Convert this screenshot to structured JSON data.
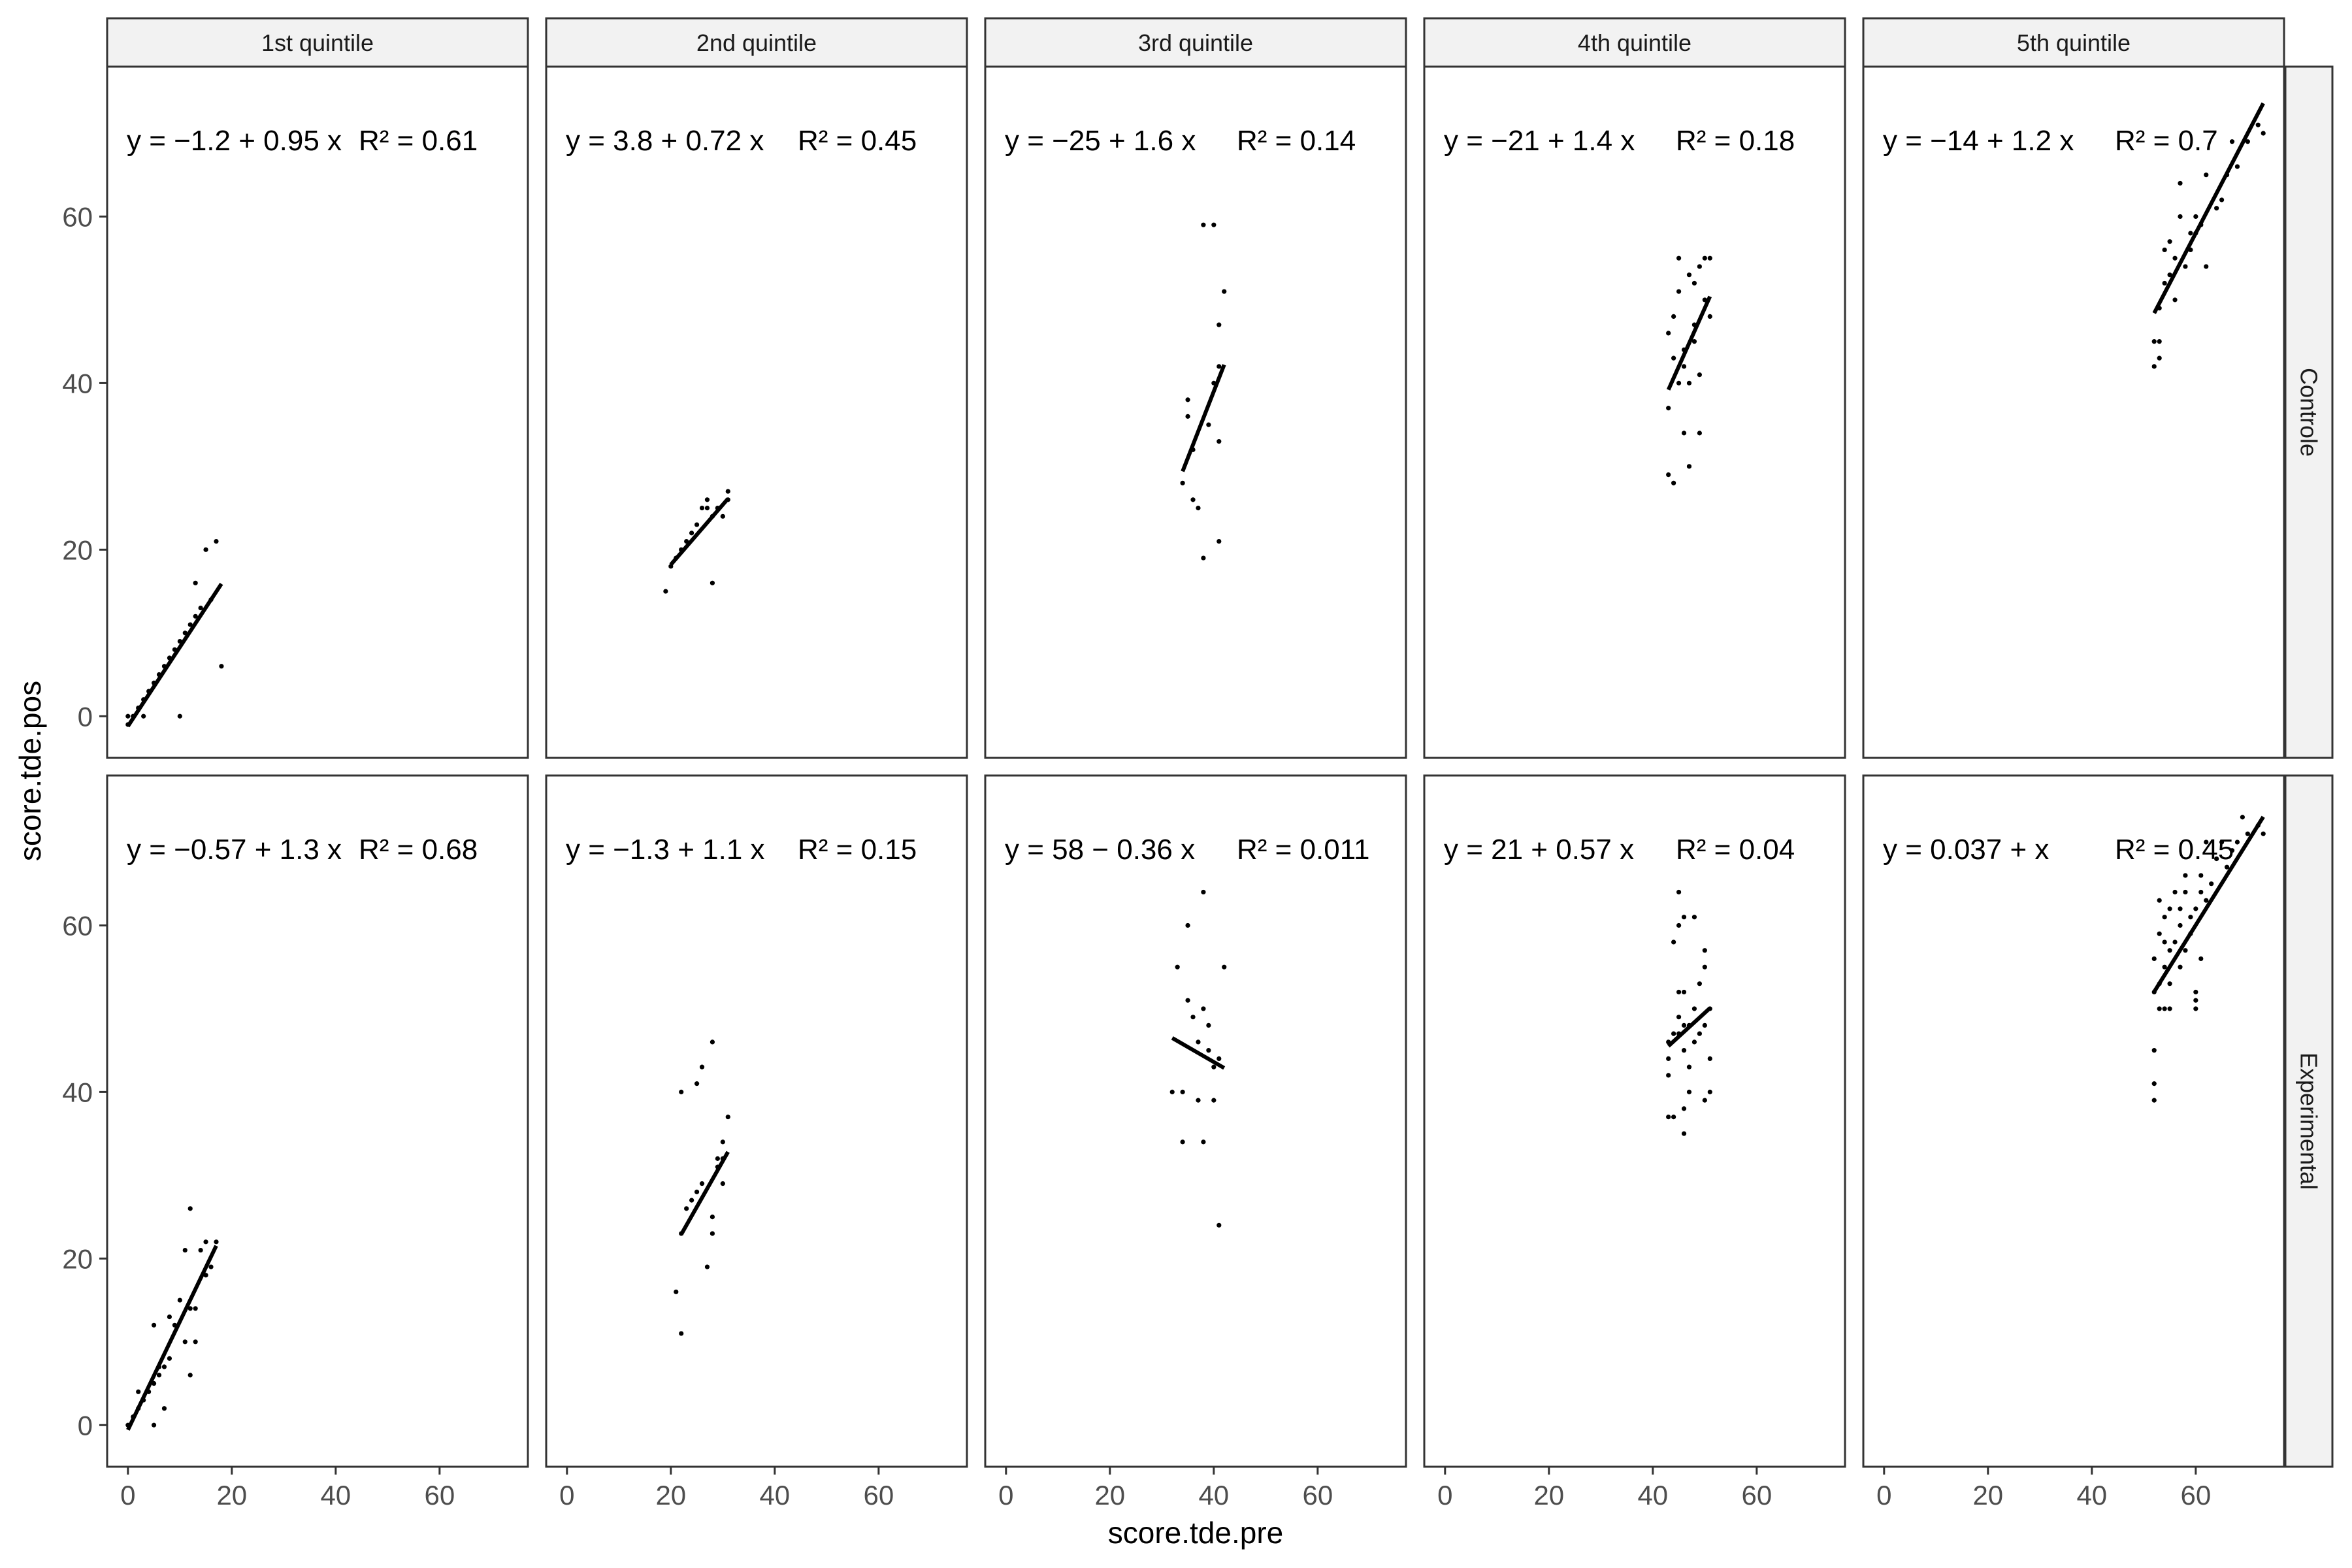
{
  "chart_data": {
    "type": "scatter",
    "xlabel": "score.tde.pre",
    "ylabel": "score.tde.pos",
    "xlim": [
      -4,
      77
    ],
    "ylim": [
      -5,
      78
    ],
    "x_ticks": [
      0,
      20,
      40,
      60
    ],
    "y_ticks": [
      0,
      20,
      40,
      60
    ],
    "columns": [
      "1st quintile",
      "2nd quintile",
      "3rd quintile",
      "4th quintile",
      "5th quintile"
    ],
    "rows": [
      "Controle",
      "Experimental"
    ],
    "grid": false,
    "legend": "none",
    "colors": {
      "points": "#000000",
      "line": "#000000",
      "strip_fill": "#f2f2f2",
      "panel_border": "#333333",
      "strip_border": "#333333"
    },
    "panels": [
      {
        "row": "Controle",
        "column": "1st quintile",
        "equation": "y = −1.2 + 0.95 x",
        "r2": "R² = 0.61",
        "fit": {
          "intercept": -1.2,
          "slope": 0.95,
          "x_range": [
            0,
            18
          ]
        },
        "points": [
          [
            0,
            0
          ],
          [
            0,
            -1
          ],
          [
            1,
            0
          ],
          [
            2,
            1
          ],
          [
            3,
            0
          ],
          [
            3,
            2
          ],
          [
            4,
            3
          ],
          [
            5,
            4
          ],
          [
            6,
            5
          ],
          [
            7,
            6
          ],
          [
            8,
            7
          ],
          [
            9,
            8
          ],
          [
            10,
            0
          ],
          [
            10,
            9
          ],
          [
            11,
            10
          ],
          [
            12,
            11
          ],
          [
            13,
            12
          ],
          [
            13,
            16
          ],
          [
            14,
            13
          ],
          [
            15,
            20
          ],
          [
            16,
            14
          ],
          [
            17,
            21
          ],
          [
            18,
            6
          ]
        ]
      },
      {
        "row": "Controle",
        "column": "2nd quintile",
        "equation": "y = 3.8 + 0.72 x",
        "r2": "R² = 0.45",
        "fit": {
          "intercept": 3.8,
          "slope": 0.72,
          "x_range": [
            20,
            31
          ]
        },
        "points": [
          [
            19,
            15
          ],
          [
            20,
            18
          ],
          [
            21,
            19
          ],
          [
            22,
            20
          ],
          [
            23,
            21
          ],
          [
            24,
            22
          ],
          [
            25,
            23
          ],
          [
            26,
            25
          ],
          [
            27,
            25
          ],
          [
            27,
            26
          ],
          [
            28,
            24
          ],
          [
            28,
            16
          ],
          [
            29,
            25
          ],
          [
            30,
            24
          ],
          [
            31,
            27
          ],
          [
            31,
            26
          ]
        ]
      },
      {
        "row": "Controle",
        "column": "3rd quintile",
        "equation": "y = −25 + 1.6 x",
        "r2": "R² = 0.14",
        "fit": {
          "intercept": -25,
          "slope": 1.6,
          "x_range": [
            34,
            42
          ]
        },
        "points": [
          [
            34,
            28
          ],
          [
            35,
            36
          ],
          [
            35,
            38
          ],
          [
            36,
            32
          ],
          [
            36,
            26
          ],
          [
            37,
            25
          ],
          [
            38,
            19
          ],
          [
            38,
            59
          ],
          [
            39,
            35
          ],
          [
            40,
            59
          ],
          [
            40,
            40
          ],
          [
            41,
            42
          ],
          [
            41,
            21
          ],
          [
            41,
            33
          ],
          [
            41,
            47
          ],
          [
            42,
            51
          ]
        ]
      },
      {
        "row": "Controle",
        "column": "4th quintile",
        "equation": "y = −21 + 1.4 x",
        "r2": "R² = 0.18",
        "fit": {
          "intercept": -21,
          "slope": 1.4,
          "x_range": [
            43,
            51
          ]
        },
        "points": [
          [
            43,
            29
          ],
          [
            43,
            37
          ],
          [
            43,
            46
          ],
          [
            44,
            28
          ],
          [
            44,
            48
          ],
          [
            44,
            43
          ],
          [
            45,
            40
          ],
          [
            45,
            51
          ],
          [
            45,
            55
          ],
          [
            46,
            34
          ],
          [
            46,
            44
          ],
          [
            47,
            40
          ],
          [
            47,
            53
          ],
          [
            47,
            30
          ],
          [
            48,
            52
          ],
          [
            48,
            45
          ],
          [
            49,
            54
          ],
          [
            49,
            41
          ],
          [
            49,
            34
          ],
          [
            50,
            55
          ],
          [
            50,
            50
          ],
          [
            51,
            55
          ],
          [
            51,
            48
          ],
          [
            46,
            42
          ],
          [
            48,
            47
          ]
        ]
      },
      {
        "row": "Controle",
        "column": "5th quintile",
        "equation": "y = −14 + 1.2 x",
        "r2": "R² = 0.7",
        "fit": {
          "intercept": -14,
          "slope": 1.2,
          "x_range": [
            52,
            73
          ]
        },
        "points": [
          [
            52,
            42
          ],
          [
            52,
            45
          ],
          [
            53,
            43
          ],
          [
            53,
            45
          ],
          [
            53,
            49
          ],
          [
            54,
            52
          ],
          [
            54,
            56
          ],
          [
            55,
            53
          ],
          [
            55,
            57
          ],
          [
            56,
            50
          ],
          [
            56,
            55
          ],
          [
            57,
            60
          ],
          [
            57,
            64
          ],
          [
            58,
            54
          ],
          [
            59,
            56
          ],
          [
            59,
            58
          ],
          [
            60,
            58
          ],
          [
            60,
            60
          ],
          [
            61,
            59
          ],
          [
            62,
            54
          ],
          [
            62,
            65
          ],
          [
            64,
            61
          ],
          [
            65,
            62
          ],
          [
            66,
            65
          ],
          [
            67,
            69
          ],
          [
            68,
            66
          ],
          [
            70,
            69
          ],
          [
            72,
            71
          ],
          [
            73,
            70
          ]
        ]
      },
      {
        "row": "Experimental",
        "column": "1st quintile",
        "equation": "y = −0.57 + 1.3 x",
        "r2": "R² = 0.68",
        "fit": {
          "intercept": -0.57,
          "slope": 1.3,
          "x_range": [
            0,
            17
          ]
        },
        "points": [
          [
            0,
            0
          ],
          [
            1,
            1
          ],
          [
            2,
            2
          ],
          [
            2,
            4
          ],
          [
            3,
            3
          ],
          [
            4,
            4
          ],
          [
            5,
            5
          ],
          [
            5,
            0
          ],
          [
            5,
            12
          ],
          [
            6,
            7
          ],
          [
            6,
            6
          ],
          [
            7,
            2
          ],
          [
            7,
            7
          ],
          [
            8,
            8
          ],
          [
            8,
            13
          ],
          [
            9,
            12
          ],
          [
            10,
            15
          ],
          [
            11,
            10
          ],
          [
            11,
            21
          ],
          [
            12,
            6
          ],
          [
            12,
            14
          ],
          [
            12,
            26
          ],
          [
            13,
            14
          ],
          [
            13,
            10
          ],
          [
            14,
            21
          ],
          [
            15,
            22
          ],
          [
            15,
            18
          ],
          [
            16,
            19
          ],
          [
            17,
            22
          ]
        ]
      },
      {
        "row": "Experimental",
        "column": "2nd quintile",
        "equation": "y = −1.3 + 1.1 x",
        "r2": "R² = 0.15",
        "fit": {
          "intercept": -1.3,
          "slope": 1.1,
          "x_range": [
            22,
            31
          ]
        },
        "points": [
          [
            21,
            16
          ],
          [
            22,
            11
          ],
          [
            22,
            23
          ],
          [
            22,
            40
          ],
          [
            23,
            26
          ],
          [
            24,
            27
          ],
          [
            25,
            28
          ],
          [
            25,
            41
          ],
          [
            26,
            29
          ],
          [
            26,
            43
          ],
          [
            27,
            19
          ],
          [
            28,
            25
          ],
          [
            28,
            23
          ],
          [
            28,
            46
          ],
          [
            29,
            31
          ],
          [
            29,
            32
          ],
          [
            30,
            32
          ],
          [
            30,
            34
          ],
          [
            30,
            29
          ],
          [
            31,
            37
          ]
        ]
      },
      {
        "row": "Experimental",
        "column": "3rd quintile",
        "equation": "y = 58 − 0.36 x",
        "r2": "R² = 0.011",
        "fit": {
          "intercept": 58,
          "slope": -0.36,
          "x_range": [
            32,
            42
          ]
        },
        "points": [
          [
            32,
            40
          ],
          [
            33,
            55
          ],
          [
            34,
            34
          ],
          [
            34,
            40
          ],
          [
            35,
            51
          ],
          [
            35,
            60
          ],
          [
            36,
            49
          ],
          [
            37,
            39
          ],
          [
            37,
            46
          ],
          [
            38,
            34
          ],
          [
            38,
            50
          ],
          [
            38,
            64
          ],
          [
            39,
            45
          ],
          [
            39,
            48
          ],
          [
            40,
            39
          ],
          [
            40,
            43
          ],
          [
            41,
            24
          ],
          [
            41,
            44
          ],
          [
            42,
            55
          ]
        ]
      },
      {
        "row": "Experimental",
        "column": "4th quintile",
        "equation": "y = 21 + 0.57 x",
        "r2": "R² = 0.04",
        "fit": {
          "intercept": 21,
          "slope": 0.57,
          "x_range": [
            43,
            51
          ]
        },
        "points": [
          [
            43,
            37
          ],
          [
            43,
            42
          ],
          [
            43,
            44
          ],
          [
            43,
            46
          ],
          [
            44,
            37
          ],
          [
            44,
            47
          ],
          [
            44,
            58
          ],
          [
            45,
            47
          ],
          [
            45,
            49
          ],
          [
            45,
            52
          ],
          [
            45,
            60
          ],
          [
            45,
            64
          ],
          [
            46,
            35
          ],
          [
            46,
            38
          ],
          [
            46,
            45
          ],
          [
            46,
            48
          ],
          [
            46,
            52
          ],
          [
            46,
            61
          ],
          [
            47,
            40
          ],
          [
            47,
            43
          ],
          [
            47,
            48
          ],
          [
            48,
            46
          ],
          [
            48,
            50
          ],
          [
            48,
            61
          ],
          [
            49,
            47
          ],
          [
            49,
            53
          ],
          [
            50,
            39
          ],
          [
            50,
            48
          ],
          [
            50,
            55
          ],
          [
            50,
            57
          ],
          [
            51,
            40
          ],
          [
            51,
            50
          ],
          [
            51,
            44
          ]
        ]
      },
      {
        "row": "Experimental",
        "column": "5th quintile",
        "equation": "y = 0.037 + x",
        "r2": "R² = 0.45",
        "fit": {
          "intercept": 0.037,
          "slope": 1.0,
          "x_range": [
            52,
            73
          ]
        },
        "points": [
          [
            52,
            39
          ],
          [
            52,
            41
          ],
          [
            52,
            45
          ],
          [
            52,
            52
          ],
          [
            52,
            56
          ],
          [
            53,
            50
          ],
          [
            53,
            53
          ],
          [
            53,
            59
          ],
          [
            53,
            63
          ],
          [
            54,
            50
          ],
          [
            54,
            55
          ],
          [
            54,
            58
          ],
          [
            54,
            61
          ],
          [
            55,
            50
          ],
          [
            55,
            53
          ],
          [
            55,
            57
          ],
          [
            55,
            62
          ],
          [
            56,
            58
          ],
          [
            56,
            64
          ],
          [
            57,
            55
          ],
          [
            57,
            60
          ],
          [
            57,
            62
          ],
          [
            58,
            57
          ],
          [
            58,
            64
          ],
          [
            58,
            66
          ],
          [
            59,
            59
          ],
          [
            59,
            61
          ],
          [
            60,
            50
          ],
          [
            60,
            51
          ],
          [
            60,
            52
          ],
          [
            60,
            62
          ],
          [
            61,
            56
          ],
          [
            61,
            64
          ],
          [
            61,
            66
          ],
          [
            62,
            63
          ],
          [
            62,
            70
          ],
          [
            63,
            65
          ],
          [
            64,
            68
          ],
          [
            65,
            70
          ],
          [
            66,
            67
          ],
          [
            67,
            69
          ],
          [
            68,
            70
          ],
          [
            69,
            73
          ],
          [
            70,
            71
          ],
          [
            72,
            72
          ],
          [
            73,
            71
          ]
        ]
      }
    ]
  }
}
